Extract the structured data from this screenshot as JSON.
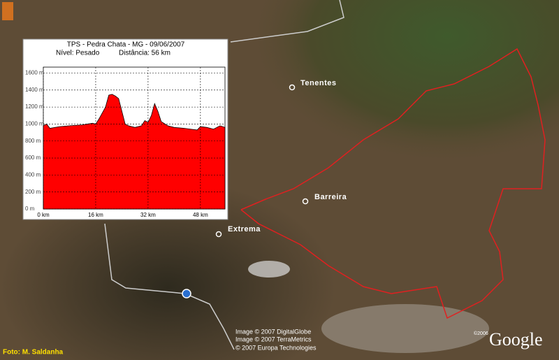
{
  "chart_data": {
    "type": "area",
    "title": "TPS - Pedra Chata - MG - 09/06/2007",
    "annotations": [
      "Nível: Pesado",
      "Distância: 56 km"
    ],
    "x": [
      0,
      1,
      2,
      5,
      8,
      12,
      15,
      16,
      17,
      19,
      20,
      21,
      22,
      23,
      24,
      25,
      26,
      28,
      30,
      31,
      32,
      33,
      34,
      35,
      36,
      38,
      40,
      43,
      45,
      47,
      48,
      50,
      52,
      54,
      55.5
    ],
    "values": [
      980,
      1000,
      950,
      970,
      980,
      990,
      1010,
      1000,
      1060,
      1200,
      1340,
      1350,
      1330,
      1300,
      1150,
      1000,
      980,
      960,
      980,
      1040,
      1020,
      1100,
      1240,
      1150,
      1030,
      980,
      960,
      950,
      940,
      930,
      970,
      960,
      940,
      980,
      960
    ],
    "color": "#ff0000",
    "xlim": [
      0,
      55.5
    ],
    "ylim": [
      0,
      1670
    ],
    "xticks": [
      {
        "value": 0,
        "label": "0 km"
      },
      {
        "value": 16,
        "label": "16 km"
      },
      {
        "value": 32,
        "label": "32 km"
      },
      {
        "value": 48,
        "label": "48 km"
      }
    ],
    "yticks": [
      {
        "value": 0,
        "label": "0 m"
      },
      {
        "value": 200,
        "label": "200 m"
      },
      {
        "value": 400,
        "label": "400 m"
      },
      {
        "value": 600,
        "label": "600 m"
      },
      {
        "value": 800,
        "label": "800 m"
      },
      {
        "value": 1000,
        "label": "1000 m"
      },
      {
        "value": 1200,
        "label": "1200 m"
      },
      {
        "value": 1400,
        "label": "1400 m"
      },
      {
        "value": 1600,
        "label": "1600 m"
      }
    ],
    "grid": true
  },
  "map": {
    "places": [
      "Tenentes",
      "Barreira",
      "Extrema"
    ],
    "credits": [
      "Image © 2007 DigitalGlobe",
      "Image © 2007 TerraMetrics",
      "© 2007 Europa Technologies"
    ],
    "logo": "Google",
    "logo_year": "©2006",
    "photo_credit": "Foto: M. Saldanha"
  }
}
